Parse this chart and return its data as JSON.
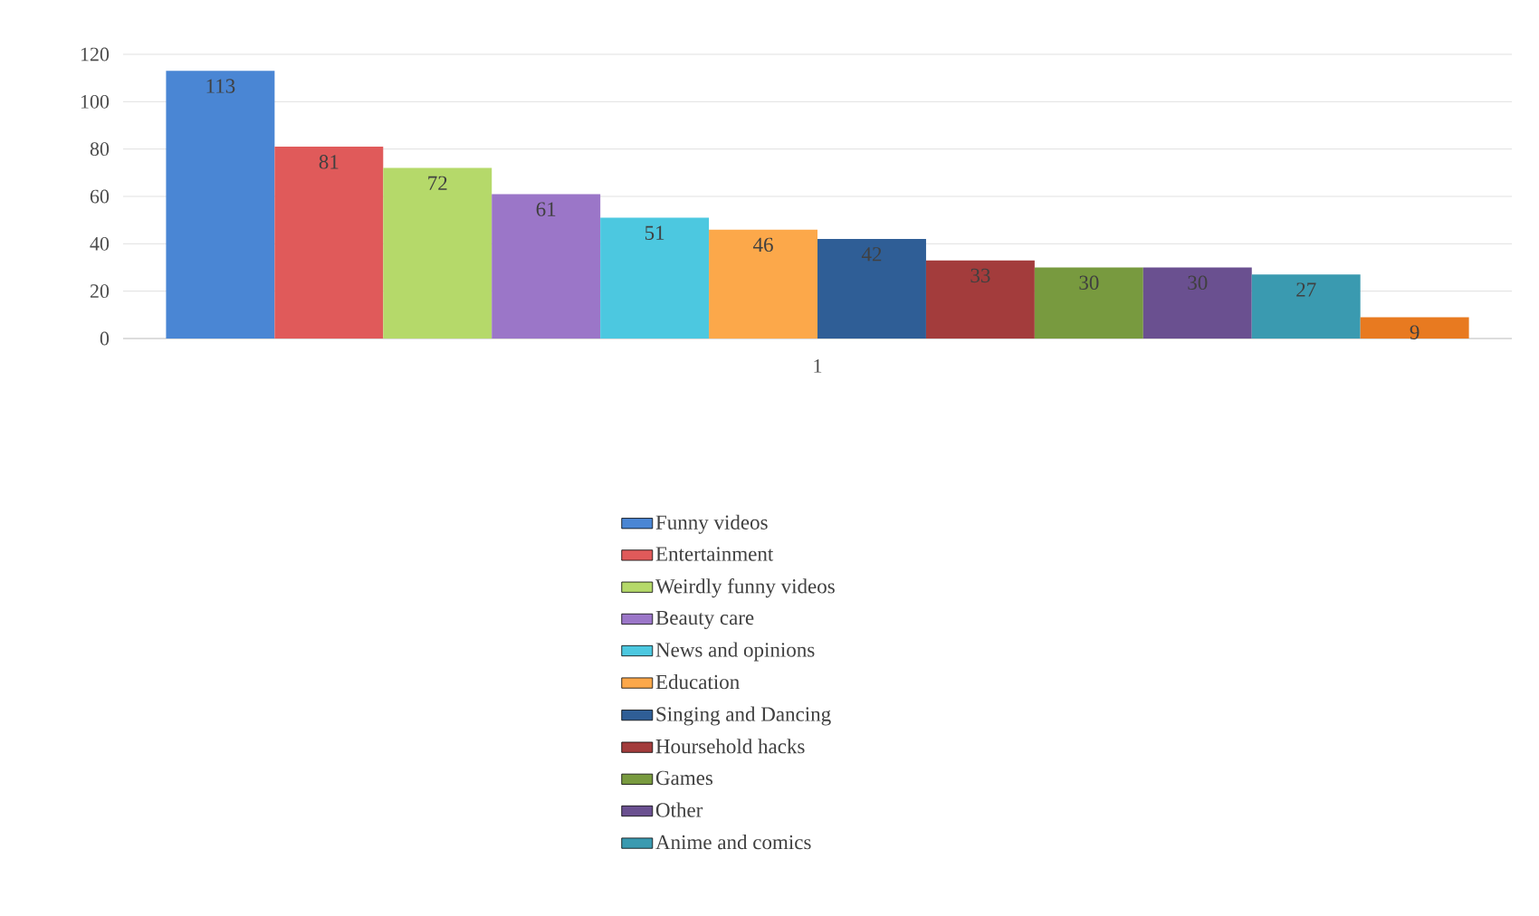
{
  "chart_data": {
    "type": "bar",
    "categories": [
      "1"
    ],
    "series": [
      {
        "name": "Funny videos",
        "color": "#4a86d4",
        "values": [
          113
        ]
      },
      {
        "name": "Entertainment",
        "color": "#e05a5a",
        "values": [
          81
        ]
      },
      {
        "name": "Weirdly funny videos",
        "color": "#b5d96a",
        "values": [
          72
        ]
      },
      {
        "name": "Beauty care",
        "color": "#9b76c8",
        "values": [
          61
        ]
      },
      {
        "name": "News and opinions",
        "color": "#4cc8e0",
        "values": [
          51
        ]
      },
      {
        "name": "Education",
        "color": "#fca84a",
        "values": [
          46
        ]
      },
      {
        "name": "Singing and Dancing",
        "color": "#2f5e96",
        "values": [
          42
        ]
      },
      {
        "name": "Hoursehold hacks",
        "color": "#a33c3c",
        "values": [
          33
        ]
      },
      {
        "name": "Games",
        "color": "#789a3f",
        "values": [
          30
        ]
      },
      {
        "name": "Other",
        "color": "#6a5090",
        "values": [
          30
        ]
      },
      {
        "name": "Anime and comics",
        "color": "#3a9ab0",
        "values": [
          27
        ]
      },
      {
        "color": "#e87a20",
        "values": [
          9
        ]
      }
    ],
    "ylim": [
      0,
      120
    ],
    "yticks": [
      0,
      20,
      40,
      60,
      80,
      100,
      120
    ],
    "grid": "y",
    "data_labels": true,
    "legend": "bottom"
  }
}
